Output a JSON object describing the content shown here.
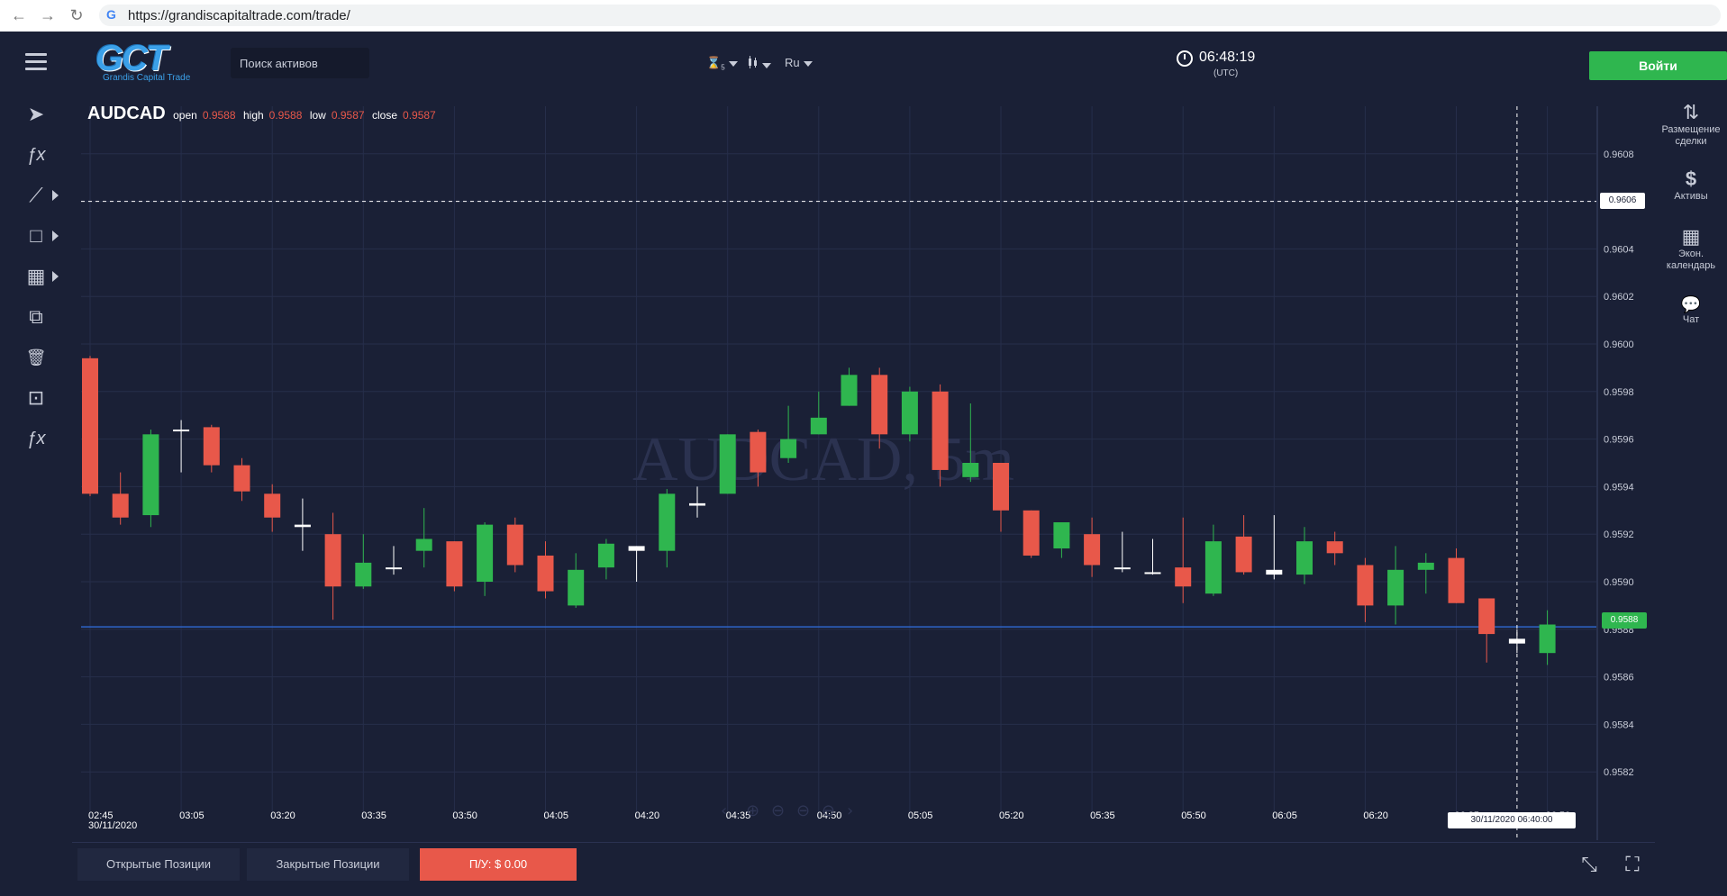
{
  "browser": {
    "url": "https://grandiscapitaltrade.com/trade/",
    "back_icon": "←",
    "forward_icon": "→",
    "reload_icon": "↻",
    "google_icon": "G"
  },
  "header": {
    "logo_text": "GCT",
    "logo_subtitle": "Grandis Capital Trade",
    "search_placeholder": "Поиск активов",
    "timeframe_icon": "⌛",
    "timeframe_sub": "5",
    "chart_type_icon": "candlestick",
    "language": "Ru",
    "time": "06:48:19",
    "timezone": "(UTC)",
    "login_label": "Войти"
  },
  "left_toolbar": [
    {
      "name": "cursor-icon",
      "glyph": "➤"
    },
    {
      "name": "indicators-icon",
      "glyph": "ƒx"
    },
    {
      "name": "trend-line-icon",
      "glyph": "⟋"
    },
    {
      "name": "rectangle-icon",
      "glyph": "□"
    },
    {
      "name": "grid-icon",
      "glyph": "▦"
    },
    {
      "name": "copy-icon",
      "glyph": "⧉"
    },
    {
      "name": "trash-icon",
      "glyph": "🗑"
    },
    {
      "name": "remove-drawings-icon",
      "glyph": "⊡"
    },
    {
      "name": "remove-indicators-icon",
      "glyph": "ƒx"
    }
  ],
  "chart_data": {
    "type": "candlestick",
    "symbol": "AUDCAD",
    "watermark": "AUDCAD, 5m",
    "ohlc_labels": {
      "open": "open",
      "high": "high",
      "low": "low",
      "close": "close"
    },
    "ohlc_values": {
      "open": "0.9588",
      "high": "0.9588",
      "low": "0.9587",
      "close": "0.9587"
    },
    "ylim": [
      0.958,
      0.961
    ],
    "y_ticks": [
      "0.9608",
      "0.9606",
      "0.9604",
      "0.9602",
      "0.9600",
      "0.9598",
      "0.9596",
      "0.9594",
      "0.9592",
      "0.9590",
      "0.9588",
      "0.9586",
      "0.9584",
      "0.9582"
    ],
    "y_tick_values": [
      0.9608,
      0.9606,
      0.9604,
      0.9602,
      0.96,
      0.9598,
      0.9596,
      0.9594,
      0.9592,
      0.959,
      0.9588,
      0.9586,
      0.9584,
      0.9582
    ],
    "x_ticks": [
      "02:45",
      "03:05",
      "03:20",
      "03:35",
      "03:50",
      "04:05",
      "04:20",
      "04:35",
      "04:50",
      "05:05",
      "05:20",
      "05:35",
      "05:50",
      "06:05",
      "06:20",
      "06:35",
      "06:50"
    ],
    "x_first_date": "30/11/2020",
    "crosshair_price": "0.9606",
    "crosshair_price_value": 0.9606,
    "current_price": "0.9588",
    "current_price_value": 0.95881,
    "crosshair_date": "30/11/2020 06:40:00",
    "candles": [
      [
        0.95994,
        0.95995,
        0.95936,
        0.95937
      ],
      [
        0.95937,
        0.95946,
        0.95924,
        0.95927
      ],
      [
        0.95928,
        0.95964,
        0.95923,
        0.95962
      ],
      [
        0.95964,
        0.95968,
        0.95946,
        0.95964
      ],
      [
        0.95965,
        0.95966,
        0.95946,
        0.95949
      ],
      [
        0.95949,
        0.95952,
        0.95934,
        0.95938
      ],
      [
        0.95937,
        0.95941,
        0.95921,
        0.95927
      ],
      [
        0.95924,
        0.95935,
        0.95913,
        0.95923
      ],
      [
        0.9592,
        0.95929,
        0.95884,
        0.95898
      ],
      [
        0.95898,
        0.9592,
        0.95897,
        0.95908
      ],
      [
        0.95906,
        0.95915,
        0.95903,
        0.95906
      ],
      [
        0.95913,
        0.95931,
        0.95906,
        0.95918
      ],
      [
        0.95917,
        0.95917,
        0.95896,
        0.95898
      ],
      [
        0.959,
        0.95925,
        0.95894,
        0.95924
      ],
      [
        0.95924,
        0.95927,
        0.95904,
        0.95907
      ],
      [
        0.95911,
        0.95917,
        0.95893,
        0.95896
      ],
      [
        0.9589,
        0.95912,
        0.95889,
        0.95905
      ],
      [
        0.95906,
        0.95918,
        0.95901,
        0.95916
      ],
      [
        0.95915,
        0.95915,
        0.959,
        0.95913
      ],
      [
        0.95913,
        0.95939,
        0.95906,
        0.95937
      ],
      [
        0.95932,
        0.9594,
        0.95927,
        0.95933
      ],
      [
        0.95937,
        0.95962,
        0.95937,
        0.95962
      ],
      [
        0.95963,
        0.95964,
        0.9594,
        0.95946
      ],
      [
        0.95952,
        0.95974,
        0.9595,
        0.9596
      ],
      [
        0.95962,
        0.9598,
        0.95962,
        0.95969
      ],
      [
        0.95974,
        0.9599,
        0.95974,
        0.95987
      ],
      [
        0.95987,
        0.9599,
        0.95956,
        0.95962
      ],
      [
        0.95962,
        0.95982,
        0.95959,
        0.9598
      ],
      [
        0.9598,
        0.95983,
        0.9594,
        0.95947
      ],
      [
        0.95944,
        0.95975,
        0.95942,
        0.9595
      ],
      [
        0.9595,
        0.9595,
        0.95921,
        0.9593
      ],
      [
        0.9593,
        0.9593,
        0.9591,
        0.95911
      ],
      [
        0.95914,
        0.95924,
        0.9591,
        0.95925
      ],
      [
        0.9592,
        0.95927,
        0.95902,
        0.95907
      ],
      [
        0.95906,
        0.95921,
        0.95904,
        0.95906
      ],
      [
        0.95904,
        0.95918,
        0.95903,
        0.95904
      ],
      [
        0.95906,
        0.95927,
        0.95891,
        0.95898
      ],
      [
        0.95895,
        0.95924,
        0.95894,
        0.95917
      ],
      [
        0.95919,
        0.95928,
        0.95903,
        0.95904
      ],
      [
        0.95905,
        0.95928,
        0.95901,
        0.95903
      ],
      [
        0.95903,
        0.95923,
        0.95899,
        0.95917
      ],
      [
        0.95917,
        0.95921,
        0.95907,
        0.95912
      ],
      [
        0.95907,
        0.9591,
        0.95883,
        0.9589
      ],
      [
        0.9589,
        0.95915,
        0.95882,
        0.95905
      ],
      [
        0.95905,
        0.95912,
        0.95895,
        0.95908
      ],
      [
        0.9591,
        0.95914,
        0.95891,
        0.95891
      ],
      [
        0.95893,
        0.95893,
        0.95866,
        0.95878
      ],
      [
        0.95876,
        0.9588,
        0.9587,
        0.95874
      ],
      [
        0.9587,
        0.95888,
        0.95865,
        0.95882
      ]
    ],
    "up_color": "#2fb64f",
    "down_color": "#e8584a",
    "grid_color": "#262e4a",
    "background": "#1a2036"
  },
  "right_panel": [
    {
      "name": "place-trade",
      "icon": "⇅",
      "label": "Размещение сделки"
    },
    {
      "name": "assets",
      "icon": "$",
      "label": "Активы"
    },
    {
      "name": "econ-calendar",
      "icon": "▦",
      "label": "Экон. календарь"
    },
    {
      "name": "chat",
      "icon": "💬",
      "label": "Чат"
    }
  ],
  "bottom_bar": {
    "open_positions": "Открытые Позиции",
    "closed_positions": "Закрытые Позиции",
    "pnl_label": "П/У:  $ 0.00",
    "collapse_icon": "⤡",
    "fullscreen_icon": "⛶"
  },
  "zoom_controls": [
    "‹",
    "⊕",
    "⊖",
    "⊖",
    "⊖",
    "›"
  ]
}
